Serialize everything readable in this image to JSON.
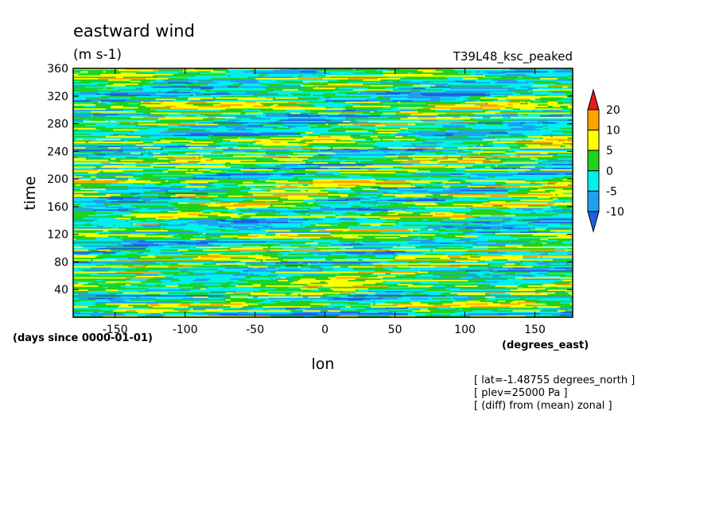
{
  "chart_data": {
    "type": "heatmap",
    "title": "eastward wind",
    "units": "(m s-1)",
    "run_label": "T39L48_ksc_peaked",
    "xlabel": "lon",
    "xunits": "(degrees_east)",
    "ylabel": "time",
    "yunits": "(days since 0000-01-01)",
    "xlim": [
      -180,
      177
    ],
    "ylim": [
      0,
      360
    ],
    "xticks": [
      -150,
      -100,
      -50,
      0,
      50,
      100,
      150
    ],
    "yticks": [
      40,
      80,
      120,
      160,
      200,
      240,
      280,
      320,
      360
    ],
    "colorbar": {
      "levels": [
        -10,
        -5,
        0,
        5,
        10,
        20
      ],
      "colors": [
        "#1f5fe0",
        "#1fa0ef",
        "#00f0f0",
        "#1fd21f",
        "#ffff00",
        "#ffa500",
        "#e61a1a"
      ]
    },
    "annotations": [
      "[ lat=-1.48755 degrees_north ]",
      "[ plev=25000 Pa ]",
      "[ (diff) from (mean) zonal ]"
    ],
    "field": {
      "rows": 180,
      "cols": 200,
      "description": "noisy zonal-wind anomaly field, values roughly between -12 and 22"
    }
  }
}
